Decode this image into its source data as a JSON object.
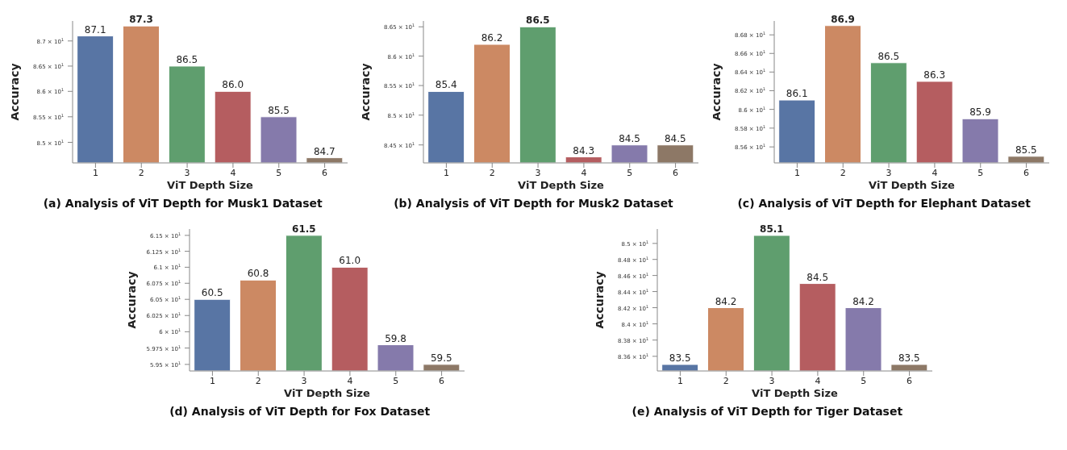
{
  "chart_data": [
    {
      "type": "bar",
      "title": "(a) Analysis of ViT Depth for Musk1 Dataset",
      "xlabel": "ViT Depth Size",
      "ylabel": "Accuracy",
      "categories": [
        "1",
        "2",
        "3",
        "4",
        "5",
        "6"
      ],
      "values": [
        87.1,
        87.3,
        86.5,
        86.0,
        85.5,
        84.7
      ],
      "value_labels": [
        "87.1",
        "87.3",
        "86.5",
        "86.0",
        "85.5",
        "84.7"
      ],
      "colors": [
        "#5875a4",
        "#cc8963",
        "#5f9e6e",
        "#b55d60",
        "#857aab",
        "#8d7866"
      ],
      "log": true,
      "ylim": [
        84.6,
        87.4
      ],
      "yticks": [
        {
          "value": 85,
          "label": "8.5 × 10$^{1}$"
        },
        {
          "value": 85.5,
          "label": "8.55 × 10$^{1}$"
        },
        {
          "value": 86,
          "label": "8.6 × 10$^{1}$"
        },
        {
          "value": 86.5,
          "label": "8.65 × 10$^{1}$"
        },
        {
          "value": 87,
          "label": "8.7 × 10$^{1}$"
        }
      ]
    },
    {
      "type": "bar",
      "title": "(b) Analysis of ViT Depth for Musk2 Dataset",
      "xlabel": "ViT Depth Size",
      "ylabel": "Accuracy",
      "categories": [
        "1",
        "2",
        "3",
        "4",
        "5",
        "6"
      ],
      "values": [
        85.4,
        86.2,
        86.5,
        84.3,
        84.5,
        84.5
      ],
      "value_labels": [
        "85.4",
        "86.2",
        "86.5",
        "84.3",
        "84.5",
        "84.5"
      ],
      "colors": [
        "#5875a4",
        "#cc8963",
        "#5f9e6e",
        "#b55d60",
        "#857aab",
        "#8d7866"
      ],
      "log": true,
      "ylim": [
        84.2,
        86.6
      ],
      "yticks": [
        {
          "value": 84.5,
          "label": "8.45 × 10$^{1}$"
        },
        {
          "value": 85,
          "label": "8.5 × 10$^{1}$"
        },
        {
          "value": 85.5,
          "label": "8.55 × 10$^{1}$"
        },
        {
          "value": 86,
          "label": "8.6 × 10$^{1}$"
        },
        {
          "value": 86.5,
          "label": "8.65 × 10$^{1}$"
        }
      ]
    },
    {
      "type": "bar",
      "title": "(c) Analysis of ViT Depth for Elephant Dataset",
      "xlabel": "ViT Depth Size",
      "ylabel": "Accuracy",
      "categories": [
        "1",
        "2",
        "3",
        "4",
        "5",
        "6"
      ],
      "values": [
        86.1,
        86.9,
        86.5,
        86.3,
        85.9,
        85.5
      ],
      "value_labels": [
        "86.1",
        "86.9",
        "86.5",
        "86.3",
        "85.9",
        "85.5"
      ],
      "colors": [
        "#5875a4",
        "#cc8963",
        "#5f9e6e",
        "#b55d60",
        "#857aab",
        "#8d7866"
      ],
      "log": true,
      "ylim": [
        85.43,
        86.95
      ],
      "yticks": [
        {
          "value": 85.6,
          "label": "8.56 × 10$^{1}$"
        },
        {
          "value": 85.8,
          "label": "8.58 × 10$^{1}$"
        },
        {
          "value": 86,
          "label": "8.6 × 10$^{1}$"
        },
        {
          "value": 86.2,
          "label": "8.62 × 10$^{1}$"
        },
        {
          "value": 86.4,
          "label": "8.64 × 10$^{1}$"
        },
        {
          "value": 86.6,
          "label": "8.66 × 10$^{1}$"
        },
        {
          "value": 86.8,
          "label": "8.68 × 10$^{1}$"
        }
      ]
    },
    {
      "type": "bar",
      "title": "(d) Analysis of ViT Depth for Fox Dataset",
      "xlabel": "ViT Depth Size",
      "ylabel": "Accuracy",
      "categories": [
        "1",
        "2",
        "3",
        "4",
        "5",
        "6"
      ],
      "values": [
        60.5,
        60.8,
        61.5,
        61.0,
        59.8,
        59.5
      ],
      "value_labels": [
        "60.5",
        "60.8",
        "61.5",
        "61.0",
        "59.8",
        "59.5"
      ],
      "colors": [
        "#5875a4",
        "#cc8963",
        "#5f9e6e",
        "#b55d60",
        "#857aab",
        "#8d7866"
      ],
      "log": true,
      "ylim": [
        59.4,
        61.6
      ],
      "yticks": [
        {
          "value": 59.5,
          "label": "5.95 × 10$^{1}$"
        },
        {
          "value": 59.75,
          "label": "5.975 × 10$^{1}$"
        },
        {
          "value": 60,
          "label": "6 × 10$^{1}$"
        },
        {
          "value": 60.25,
          "label": "6.025 × 10$^{1}$"
        },
        {
          "value": 60.5,
          "label": "6.05 × 10$^{1}$"
        },
        {
          "value": 60.75,
          "label": "6.075 × 10$^{1}$"
        },
        {
          "value": 61,
          "label": "6.1 × 10$^{1}$"
        },
        {
          "value": 61.25,
          "label": "6.125 × 10$^{1}$"
        },
        {
          "value": 61.5,
          "label": "6.15 × 10$^{1}$"
        }
      ]
    },
    {
      "type": "bar",
      "title": "(e) Analysis of ViT Depth for Tiger Dataset",
      "xlabel": "ViT Depth Size",
      "ylabel": "Accuracy",
      "categories": [
        "1",
        "2",
        "3",
        "4",
        "5",
        "6"
      ],
      "values": [
        83.5,
        84.2,
        85.1,
        84.5,
        84.2,
        83.5
      ],
      "value_labels": [
        "83.5",
        "84.2",
        "85.1",
        "84.5",
        "84.2",
        "83.5"
      ],
      "colors": [
        "#5875a4",
        "#cc8963",
        "#5f9e6e",
        "#b55d60",
        "#857aab",
        "#8d7866"
      ],
      "log": true,
      "ylim": [
        83.42,
        85.18
      ],
      "yticks": [
        {
          "value": 83.6,
          "label": "8.36 × 10$^{1}$"
        },
        {
          "value": 83.8,
          "label": "8.38 × 10$^{1}$"
        },
        {
          "value": 84,
          "label": "8.4 × 10$^{1}$"
        },
        {
          "value": 84.2,
          "label": "8.42 × 10$^{1}$"
        },
        {
          "value": 84.4,
          "label": "8.44 × 10$^{1}$"
        },
        {
          "value": 84.6,
          "label": "8.46 × 10$^{1}$"
        },
        {
          "value": 84.8,
          "label": "8.48 × 10$^{1}$"
        },
        {
          "value": 85,
          "label": "8.5 × 10$^{1}$"
        }
      ]
    }
  ]
}
